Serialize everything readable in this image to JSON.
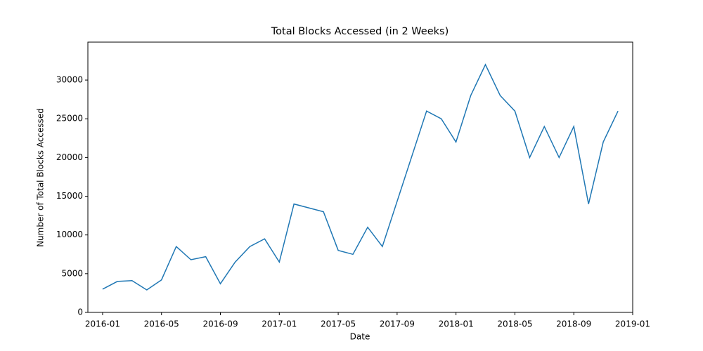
{
  "chart_data": {
    "type": "line",
    "title": "Total Blocks Accessed (in 2 Weeks)",
    "x_label": "Date",
    "y_label": "Number of Total Blocks Accessed",
    "x": [
      "2016-01",
      "2016-02",
      "2016-03",
      "2016-04",
      "2016-05",
      "2016-06",
      "2016-07",
      "2016-08",
      "2016-09",
      "2016-10",
      "2016-11",
      "2016-12",
      "2017-01",
      "2017-02",
      "2017-03",
      "2017-04",
      "2017-05",
      "2017-06",
      "2017-07",
      "2017-08",
      "2017-11",
      "2017-12",
      "2018-01",
      "2018-02",
      "2018-03",
      "2018-04",
      "2018-05",
      "2018-06",
      "2018-07",
      "2018-08",
      "2018-09",
      "2018-10",
      "2018-11",
      "2018-12"
    ],
    "series": [
      {
        "color": "#1f77b4",
        "values": [
          3000,
          4000,
          4100,
          2900,
          4200,
          8500,
          6800,
          7200,
          3700,
          6500,
          8500,
          9500,
          6500,
          14000,
          13500,
          13000,
          8000,
          7500,
          11000,
          8500,
          26000,
          25000,
          22000,
          28000,
          32000,
          28000,
          26000,
          20000,
          24000,
          20000,
          24000,
          14000,
          22000,
          26000
        ]
      }
    ],
    "xlim": [
      "2015-12",
      "2019-01"
    ],
    "xticks": [
      "2016-01",
      "2016-05",
      "2016-09",
      "2017-01",
      "2017-05",
      "2017-09",
      "2018-01",
      "2018-05",
      "2018-09",
      "2019-01"
    ],
    "ylim": [
      0,
      34900
    ],
    "yticks": [
      0,
      5000,
      10000,
      15000,
      20000,
      25000,
      30000
    ]
  }
}
